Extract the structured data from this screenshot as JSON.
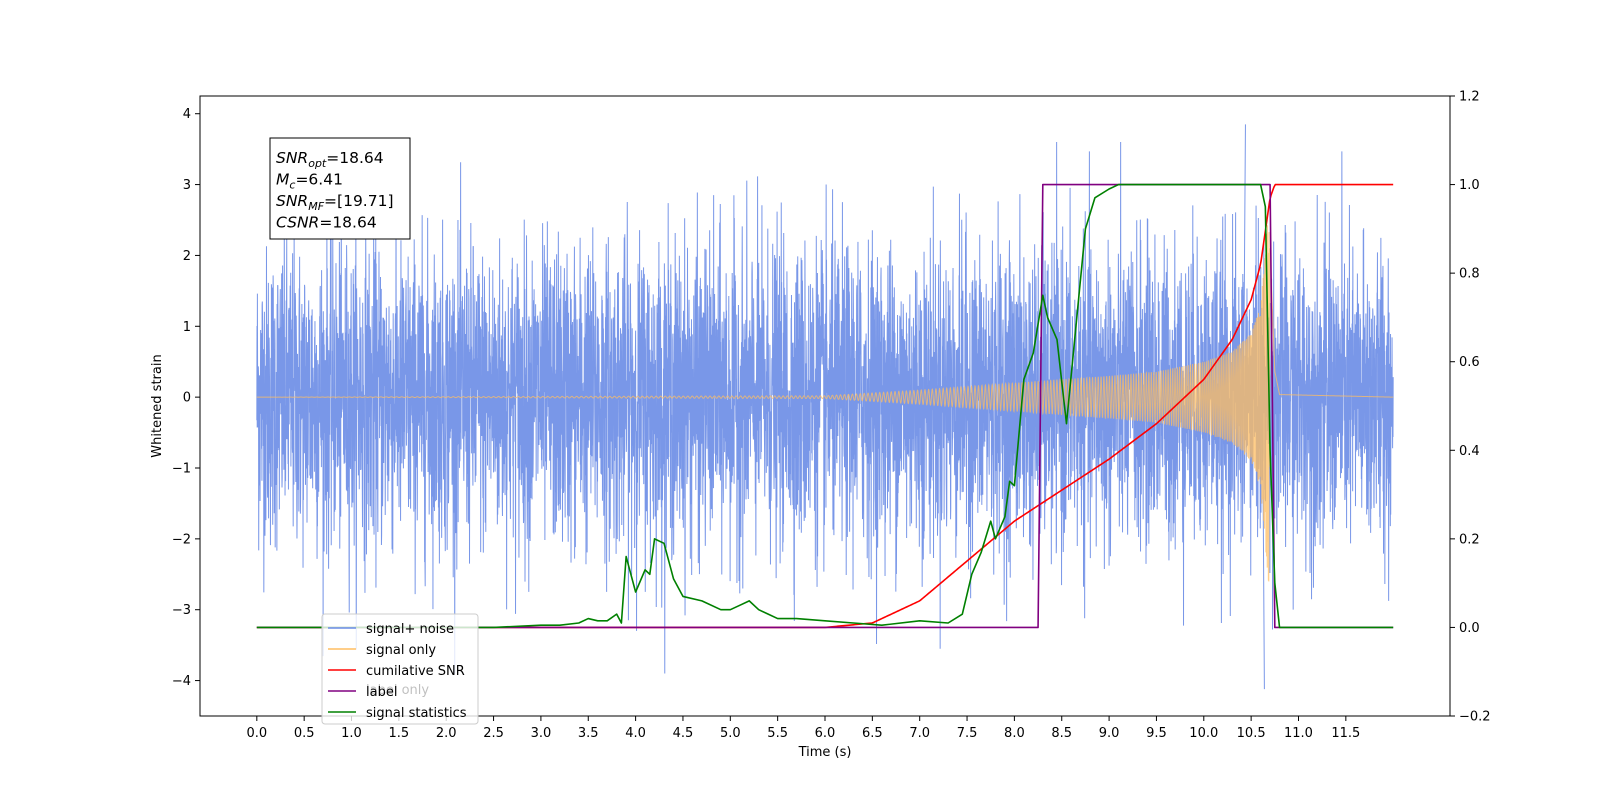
{
  "chart_data": {
    "type": "line",
    "xlabel": "Time (s)",
    "ylabel_left": "Whitened strain",
    "ylabel_right": "",
    "xlim": [
      -0.6,
      12.6
    ],
    "ylim_left": [
      -4.5,
      4.25
    ],
    "ylim_right": [
      -0.2,
      1.2
    ],
    "x_ticks": [
      0.0,
      0.5,
      1.0,
      1.5,
      2.0,
      2.5,
      3.0,
      3.5,
      4.0,
      4.5,
      5.0,
      5.5,
      6.0,
      6.5,
      7.0,
      7.5,
      8.0,
      8.5,
      9.0,
      9.5,
      10.0,
      10.5,
      11.0,
      11.5
    ],
    "x_tick_labels": [
      "0.0",
      "0.5",
      "1.0",
      "1.5",
      "2.0",
      "2.5",
      "3.0",
      "3.5",
      "4.0",
      "4.5",
      "5.0",
      "5.5",
      "6.0",
      "6.5",
      "7.0",
      "7.5",
      "8.0",
      "8.5",
      "9.0",
      "9.5",
      "10.0",
      "10.5",
      "11.0",
      "11.5"
    ],
    "y_ticks_left": [
      -4,
      -3,
      -2,
      -1,
      0,
      1,
      2,
      3,
      4
    ],
    "y_tick_labels_left": [
      "−4",
      "−3",
      "−2",
      "−1",
      "0",
      "1",
      "2",
      "3",
      "4"
    ],
    "y_ticks_right": [
      -0.2,
      0.0,
      0.2,
      0.4,
      0.6,
      0.8,
      1.0,
      1.2
    ],
    "y_tick_labels_right": [
      "−0.2",
      "0.0",
      "0.2",
      "0.4",
      "0.6",
      "0.8",
      "1.0",
      "1.2"
    ],
    "grid": false,
    "legend_position": "lower-left",
    "annotation": {
      "lines": [
        {
          "base": "SNR",
          "sub": "opt",
          "rest": "=18.64"
        },
        {
          "base": "M",
          "sub": "c",
          "rest": "=6.41"
        },
        {
          "base": "SNR",
          "sub": "MF",
          "rest": "=[19.71]"
        },
        {
          "base": "CSNR",
          "sub": "",
          "rest": "=18.64"
        }
      ]
    },
    "series": [
      {
        "name": "signal+ noise",
        "axis": "left",
        "color": "#6a8ce6",
        "kind": "noise",
        "x_range": [
          0.0,
          12.0
        ],
        "typical_amplitude": 1.0,
        "extremes": {
          "max": 3.85,
          "min": -4.12
        }
      },
      {
        "name": "signal only",
        "axis": "left",
        "color": "#ffbe62",
        "kind": "chirp",
        "x_range": [
          0.0,
          12.0
        ],
        "coalescence_time": 10.7,
        "envelope": {
          "x": [
            0.0,
            6.0,
            7.0,
            8.0,
            9.0,
            9.5,
            10.0,
            10.3,
            10.5,
            10.6,
            10.7,
            10.75,
            10.8,
            12.0
          ],
          "y": [
            0.0,
            0.02,
            0.1,
            0.2,
            0.3,
            0.36,
            0.5,
            0.65,
            0.9,
            1.3,
            2.9,
            0.5,
            0.05,
            0.0
          ]
        }
      },
      {
        "name": "cumilative SNR",
        "axis": "right",
        "color": "#ff0000",
        "x": [
          6.0,
          6.5,
          7.0,
          7.5,
          8.0,
          8.5,
          9.0,
          9.5,
          10.0,
          10.3,
          10.5,
          10.6,
          10.7,
          10.75,
          11.0,
          12.0
        ],
        "y": [
          0.0,
          0.01,
          0.06,
          0.15,
          0.24,
          0.31,
          0.38,
          0.46,
          0.56,
          0.65,
          0.74,
          0.82,
          0.97,
          1.0,
          1.0,
          1.0
        ]
      },
      {
        "name": "label",
        "axis": "right",
        "color": "#800080",
        "x": [
          0.0,
          8.25,
          8.3,
          10.7,
          10.75,
          12.0
        ],
        "y": [
          0.0,
          0.0,
          1.0,
          1.0,
          0.0,
          0.0
        ]
      },
      {
        "name": "signal statistics",
        "axis": "right",
        "color": "#008000",
        "x": [
          0.0,
          1.0,
          2.0,
          2.5,
          3.0,
          3.2,
          3.4,
          3.5,
          3.6,
          3.7,
          3.8,
          3.85,
          3.9,
          4.0,
          4.1,
          4.15,
          4.2,
          4.3,
          4.4,
          4.5,
          4.7,
          4.9,
          5.0,
          5.1,
          5.2,
          5.3,
          5.4,
          5.5,
          5.7,
          6.0,
          6.3,
          6.6,
          7.0,
          7.3,
          7.45,
          7.55,
          7.65,
          7.75,
          7.8,
          7.9,
          7.95,
          8.0,
          8.1,
          8.2,
          8.3,
          8.35,
          8.45,
          8.55,
          8.65,
          8.75,
          8.85,
          9.0,
          9.1,
          9.3,
          10.0,
          10.6,
          10.65,
          10.7,
          10.75,
          10.8,
          12.0
        ],
        "y": [
          0.0,
          0.0,
          0.0,
          0.0,
          0.005,
          0.005,
          0.01,
          0.02,
          0.015,
          0.015,
          0.03,
          0.01,
          0.16,
          0.08,
          0.13,
          0.12,
          0.2,
          0.19,
          0.11,
          0.07,
          0.06,
          0.04,
          0.04,
          0.05,
          0.06,
          0.04,
          0.03,
          0.02,
          0.02,
          0.015,
          0.01,
          0.005,
          0.015,
          0.01,
          0.03,
          0.12,
          0.17,
          0.24,
          0.2,
          0.25,
          0.33,
          0.32,
          0.56,
          0.62,
          0.75,
          0.7,
          0.65,
          0.46,
          0.68,
          0.9,
          0.97,
          0.99,
          1.0,
          1.0,
          1.0,
          1.0,
          0.95,
          0.4,
          0.1,
          0.0,
          0.0
        ]
      }
    ],
    "legend_overlay_text": "label only"
  }
}
